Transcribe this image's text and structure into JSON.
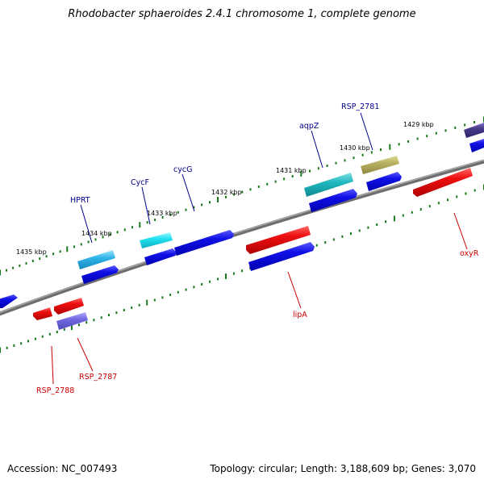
{
  "title": "Rhodobacter sphaeroides 2.4.1 chromosome 1, complete genome",
  "footer": {
    "accession": "Accession: NC_007493",
    "summary": "Topology: circular; Length: 3,188,609 bp; Genes: 3,070"
  },
  "colors": {
    "backbone": "#808080",
    "tick": "#1a7a1a",
    "label_forward": "#00008b",
    "label_reverse": "#cc0000"
  },
  "kbp_labels": [
    "1435 kbp",
    "1434 kbp",
    "1433 kbp",
    "1432 kbp",
    "1431 kbp",
    "1430 kbp",
    "1429 kbp"
  ],
  "gene_labels": {
    "hprt": "HPRT",
    "cycf": "CycF",
    "cycg": "cycG",
    "aqpz": "aqpZ",
    "rsp2781": "RSP_2781",
    "lipa": "lipA",
    "oxyr": "oxyR",
    "rsp2787": "RSP_2787",
    "rsp2788": "RSP_2788"
  }
}
